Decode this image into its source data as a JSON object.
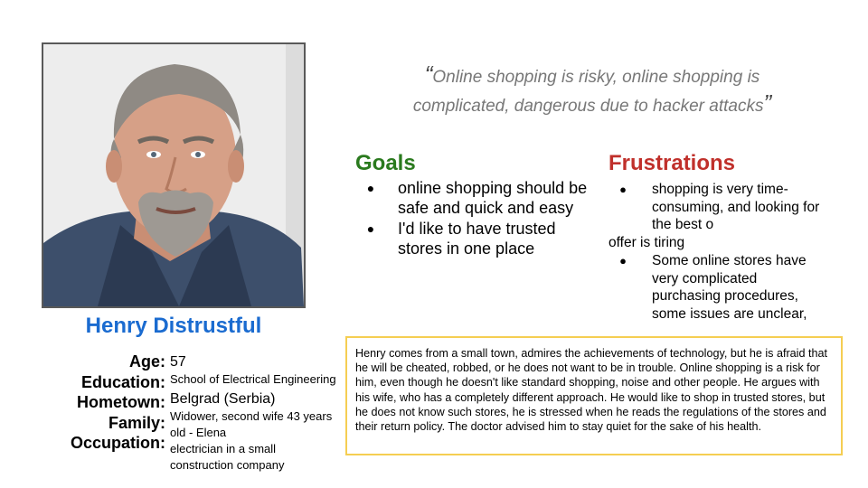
{
  "persona": {
    "name": "Henry Distrustful",
    "photo_icon": "man-portrait-photo"
  },
  "facts": {
    "labels": [
      "Age:",
      "Education:",
      "Hometown:",
      "Family:",
      "Occupation:"
    ],
    "age": "57",
    "education": "School of Electrical Engineering",
    "hometown": "Belgrad (Serbia)",
    "family_line1": "Widower, second wife 43 years",
    "family_line2": "old - Elena",
    "occupation_line1": "electrician in a small",
    "occupation_line2": "construction company"
  },
  "quote": {
    "open_mark": "“",
    "line1": "Online shopping is risky, online shopping is",
    "line2": "complicated, dangerous due to hacker attacks",
    "close_mark": "”"
  },
  "goals": {
    "title": "Goals",
    "items": [
      "online shopping should be safe and quick and easy",
      "I'd like to have trusted stores in one place"
    ]
  },
  "frustrations": {
    "title": "Frustrations",
    "item1_main": "shopping is very time-consuming, and looking for the best o",
    "item1_cont": "offer is tiring",
    "item2": "Some online stores have very complicated purchasing procedures, some issues are unclear,"
  },
  "bio": "Henry comes from a small town, admires the achievements of technology, but he is afraid that he will be cheated, robbed, or he does not want to be in trouble. Online shopping is a risk for him, even though he doesn't like standard shopping, noise and other people. He argues with his wife, who has a completely different approach. He would like to shop in trusted stores, but he does not know such stores, he is stressed when he reads the regulations of the stores and their return policy. The doctor advised him to stay quiet for the sake of his health.",
  "colors": {
    "name": "#1a6bd0",
    "goals": "#2a7a1e",
    "frustrations": "#c0302b",
    "bio_border": "#f5ce52"
  }
}
